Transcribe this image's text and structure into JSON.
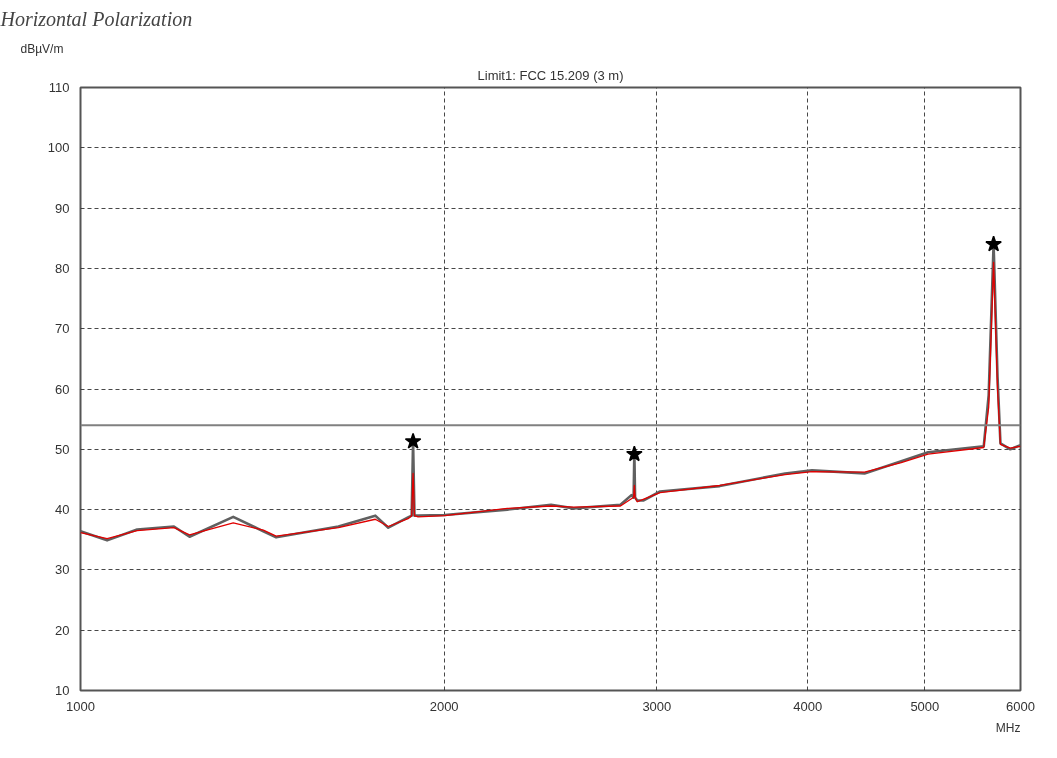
{
  "chart_data": {
    "type": "line",
    "title": "Horizontal Polarization",
    "subtitle": "Limit1: FCC 15.209 (3 m)",
    "xlabel": "MHz",
    "ylabel": "dBµV/m",
    "log": "x",
    "xlim": [
      1000,
      6000
    ],
    "xticks": [
      1000,
      2000,
      3000,
      4000,
      5000,
      6000
    ],
    "ylim": [
      10,
      110
    ],
    "yticks": [
      10,
      20,
      30,
      40,
      50,
      60,
      70,
      80,
      90,
      100,
      110
    ],
    "grid": true,
    "ref_lines": [
      {
        "axis": "y",
        "value": 54,
        "color": "#808080",
        "line_style": "solid"
      }
    ],
    "series": [
      {
        "color": "#606060",
        "x": [
          1000,
          1052,
          1114,
          1195,
          1231,
          1338,
          1417,
          1452,
          1635,
          1754,
          1798,
          1867,
          1880,
          1885,
          1890,
          1903,
          2002,
          2256,
          2452,
          2560,
          2799,
          2858,
          2870,
          2874,
          2878,
          2890,
          2923,
          3018,
          3382,
          3831,
          4032,
          4457,
          4780,
          5031,
          5594,
          5647,
          5700,
          5743,
          5775,
          5885,
          6000
        ],
        "values": [
          36.4,
          34.9,
          36.7,
          37.2,
          35.5,
          38.8,
          36.4,
          35.4,
          37.2,
          39.0,
          37.0,
          38.7,
          39,
          51.3,
          39,
          39,
          39.1,
          40,
          40.8,
          40.2,
          40.8,
          42.4,
          42,
          49.5,
          42,
          41.5,
          41.5,
          43,
          43.9,
          46,
          46.5,
          46,
          48,
          49.5,
          50.5,
          59,
          84,
          62,
          51,
          50,
          50.7
        ]
      },
      {
        "color": "#e00000",
        "x": [
          1000,
          1052,
          1114,
          1195,
          1231,
          1338,
          1417,
          1452,
          1635,
          1754,
          1798,
          1867,
          1880,
          1885,
          1890,
          1903,
          2002,
          2256,
          2452,
          2560,
          2799,
          2858,
          2870,
          2874,
          2878,
          2890,
          2923,
          3018,
          3382,
          3831,
          4032,
          4457,
          4780,
          5031,
          5594,
          5647,
          5700,
          5743,
          5775,
          5885,
          6000
        ],
        "values": [
          36.2,
          35.2,
          36.5,
          37.0,
          35.8,
          37.8,
          36.6,
          35.6,
          37.0,
          38.4,
          37.2,
          38.5,
          39,
          46,
          39,
          38.8,
          39,
          40.2,
          40.6,
          40.4,
          40.6,
          41.8,
          42,
          44,
          42,
          41.3,
          41.7,
          42.8,
          44,
          45.8,
          46.3,
          46.2,
          47.8,
          49.2,
          50.3,
          57,
          81,
          60,
          50.8,
          50.2,
          50.5
        ]
      },
      {
        "type": "scatter",
        "marker": "star",
        "color": "#000000",
        "x": [
          1885,
          2874,
          5700
        ],
        "values": [
          51.3,
          49.2,
          84
        ]
      }
    ]
  }
}
